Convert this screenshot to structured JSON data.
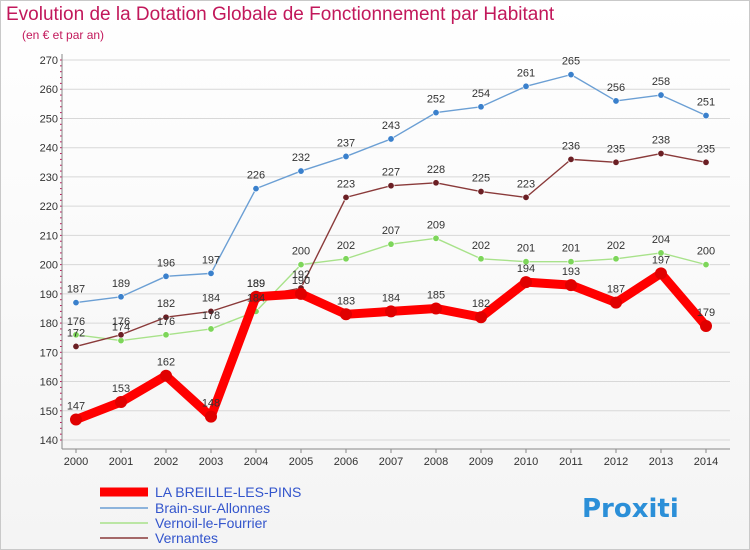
{
  "title": "Evolution de la Dotation Globale de Fonctionnement par Habitant",
  "subtitle": "(en € et par an)",
  "logo_text": "Proxiti",
  "colors": {
    "title": "#c2185b",
    "grid": "#d8d8d8",
    "legend_text": "#3355cc"
  },
  "chart_data": {
    "type": "line",
    "title": "Evolution de la Dotation Globale de Fonctionnement par Habitant",
    "ylabel": "(en € et par an)",
    "xlabel": "",
    "ylim": [
      140,
      270
    ],
    "yticks": [
      140,
      150,
      160,
      170,
      180,
      190,
      200,
      210,
      220,
      230,
      240,
      250,
      260,
      270
    ],
    "categories": [
      "2000",
      "2001",
      "2002",
      "2003",
      "2004",
      "2005",
      "2006",
      "2007",
      "2008",
      "2009",
      "2010",
      "2011",
      "2012",
      "2013",
      "2014"
    ],
    "grid": "horizontal",
    "legend": "bottom-left",
    "series": [
      {
        "name": "Brain-sur-Allonnes",
        "color": "#6b9fd4",
        "marker": "#3a80cc",
        "width": 1.4,
        "values": [
          187,
          189,
          196,
          197,
          226,
          232,
          237,
          243,
          252,
          254,
          261,
          265,
          256,
          258,
          251
        ]
      },
      {
        "name": "Vernoil-le-Fourrier",
        "color": "#a8e28a",
        "marker": "#7dd65a",
        "width": 1.4,
        "values": [
          176,
          174,
          176,
          178,
          184,
          200,
          202,
          207,
          209,
          202,
          201,
          201,
          202,
          204,
          200
        ]
      },
      {
        "name": "Vernantes",
        "color": "#8a3a3a",
        "marker": "#6b1f24",
        "width": 1.4,
        "values": [
          172,
          176,
          182,
          184,
          189,
          192,
          223,
          227,
          228,
          225,
          223,
          236,
          235,
          238,
          235
        ]
      },
      {
        "name": "LA BREILLE-LES-PINS",
        "color": "#ff0000",
        "marker": "#e00000",
        "width": 9,
        "values": [
          147,
          153,
          162,
          148,
          189,
          190,
          183,
          184,
          185,
          182,
          194,
          193,
          187,
          197,
          179
        ]
      }
    ],
    "legend_order": [
      "LA BREILLE-LES-PINS",
      "Brain-sur-Allonnes",
      "Vernoil-le-Fourrier",
      "Vernantes"
    ]
  }
}
